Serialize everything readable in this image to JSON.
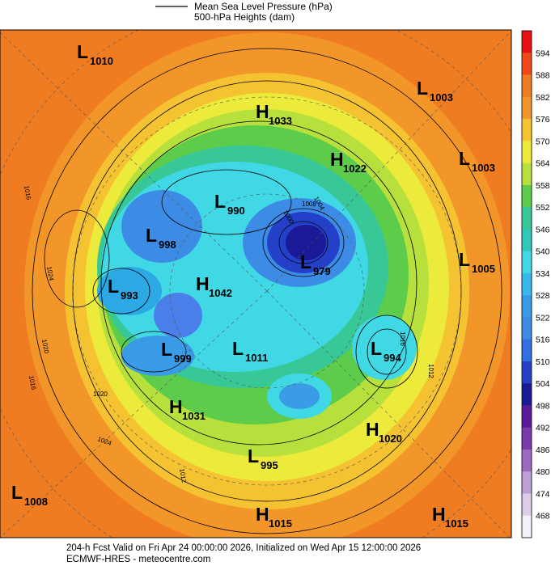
{
  "legend": {
    "lines": [
      "Mean Sea Level Pressure (hPa)",
      "500-hPa Heights (dam)"
    ]
  },
  "colorbar": {
    "labels": [
      "594",
      "588",
      "582",
      "576",
      "570",
      "564",
      "558",
      "552",
      "546",
      "540",
      "534",
      "528",
      "522",
      "516",
      "510",
      "504",
      "498",
      "492",
      "486",
      "480",
      "474",
      "468"
    ]
  },
  "centers": [
    {
      "letter": "L",
      "value": "1010"
    },
    {
      "letter": "L",
      "value": "1003"
    },
    {
      "letter": "H",
      "value": "1033"
    },
    {
      "letter": "H",
      "value": "1022"
    },
    {
      "letter": "L",
      "value": "1003"
    },
    {
      "letter": "L",
      "value": "990"
    },
    {
      "letter": "L",
      "value": "998"
    },
    {
      "letter": "L",
      "value": "979"
    },
    {
      "letter": "L",
      "value": "1005"
    },
    {
      "letter": "L",
      "value": "993"
    },
    {
      "letter": "H",
      "value": "1042"
    },
    {
      "letter": "L",
      "value": "999"
    },
    {
      "letter": "L",
      "value": "1011"
    },
    {
      "letter": "L",
      "value": "994"
    },
    {
      "letter": "H",
      "value": "1031"
    },
    {
      "letter": "H",
      "value": "1020"
    },
    {
      "letter": "L",
      "value": "995"
    },
    {
      "letter": "L",
      "value": "1008"
    },
    {
      "letter": "H",
      "value": "1015"
    },
    {
      "letter": "H",
      "value": "1015"
    }
  ],
  "isobar_labels": [
    "1016",
    "1024",
    "1020",
    "1016",
    "1020",
    "1024",
    "1012",
    "1008",
    "1004",
    "1000",
    "1012",
    "1016"
  ],
  "footer": {
    "lines": [
      "204-h Fcst Valid on Fri Apr 24 00:00:00 2026, Initialized on Wed Apr 15 12:00:00 2026",
      "ECMWF-HRES  - meteocentre.com"
    ]
  }
}
